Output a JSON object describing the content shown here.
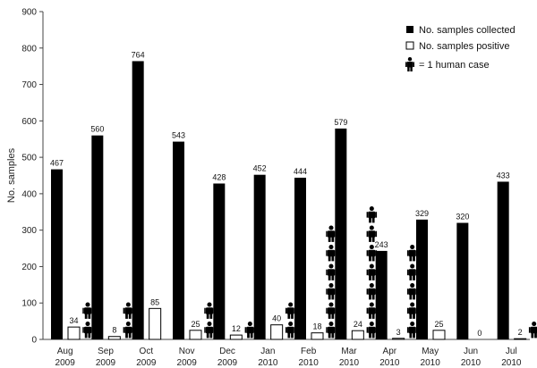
{
  "chart_data": {
    "type": "bar",
    "ylabel": "No. samples",
    "ylim": [
      0,
      900
    ],
    "yticks": [
      0,
      100,
      200,
      300,
      400,
      500,
      600,
      700,
      800,
      900
    ],
    "categories": [
      [
        "Aug",
        "2009"
      ],
      [
        "Sep",
        "2009"
      ],
      [
        "Oct",
        "2009"
      ],
      [
        "Nov",
        "2009"
      ],
      [
        "Dec",
        "2009"
      ],
      [
        "Jan",
        "2010"
      ],
      [
        "Feb",
        "2010"
      ],
      [
        "Mar",
        "2010"
      ],
      [
        "Apr",
        "2010"
      ],
      [
        "May",
        "2010"
      ],
      [
        "Jun",
        "2010"
      ],
      [
        "Jul",
        "2010"
      ]
    ],
    "series": [
      {
        "name": "No. samples collected",
        "color": "#000000",
        "values": [
          467,
          560,
          764,
          543,
          428,
          452,
          444,
          579,
          243,
          329,
          320,
          433
        ]
      },
      {
        "name": "No. samples positive",
        "color": "#ffffff",
        "values": [
          34,
          8,
          85,
          25,
          12,
          40,
          18,
          24,
          3,
          25,
          0,
          2
        ]
      }
    ],
    "human_cases": {
      "legend_label": "= 1 human case",
      "icon": "person-icon",
      "counts": [
        2,
        2,
        0,
        2,
        1,
        2,
        6,
        7,
        5,
        0,
        0,
        1
      ]
    },
    "legend_position": "top-right",
    "grid": false
  }
}
